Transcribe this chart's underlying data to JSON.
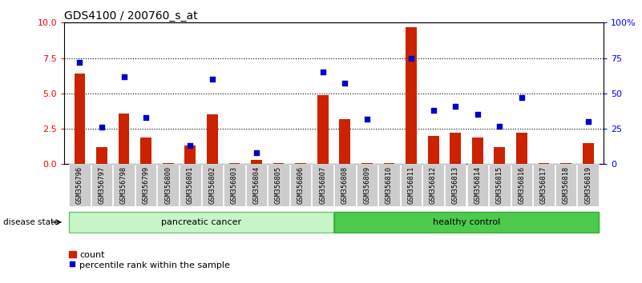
{
  "title": "GDS4100 / 200760_s_at",
  "samples": [
    "GSM356796",
    "GSM356797",
    "GSM356798",
    "GSM356799",
    "GSM356800",
    "GSM356801",
    "GSM356802",
    "GSM356803",
    "GSM356804",
    "GSM356805",
    "GSM356806",
    "GSM356807",
    "GSM356808",
    "GSM356809",
    "GSM356810",
    "GSM356811",
    "GSM356812",
    "GSM356813",
    "GSM356814",
    "GSM356815",
    "GSM356816",
    "GSM356817",
    "GSM356818",
    "GSM356819"
  ],
  "counts": [
    6.4,
    1.2,
    3.6,
    1.9,
    0.05,
    1.3,
    3.5,
    0.05,
    0.3,
    0.05,
    0.05,
    4.9,
    3.2,
    0.05,
    0.05,
    9.7,
    2.0,
    2.2,
    1.9,
    1.2,
    2.2,
    0.05,
    0.05,
    1.5
  ],
  "percentiles": [
    72,
    26,
    62,
    33,
    null,
    13,
    60,
    null,
    8,
    null,
    null,
    65,
    57,
    32,
    null,
    75,
    38,
    41,
    35,
    27,
    47,
    null,
    null,
    30
  ],
  "bar_color": "#CC2200",
  "dot_color": "#0000CC",
  "ylim_left": [
    0,
    10
  ],
  "ylim_right": [
    0,
    100
  ],
  "yticks_left": [
    0,
    2.5,
    5.0,
    7.5,
    10
  ],
  "yticks_right": [
    0,
    25,
    50,
    75,
    100
  ],
  "ylabel_right_labels": [
    "0",
    "25",
    "50",
    "75",
    "100%"
  ],
  "grid_values": [
    2.5,
    5.0,
    7.5
  ],
  "bar_width": 0.5,
  "tick_bg_color": "#cccccc",
  "legend_count_label": "count",
  "legend_pct_label": "percentile rank within the sample",
  "disease_state_label": "disease state",
  "pc_color_light": "#c8f5c8",
  "pc_color_border": "#70c070",
  "hc_color": "#4eca4e",
  "hc_color_border": "#30a830"
}
